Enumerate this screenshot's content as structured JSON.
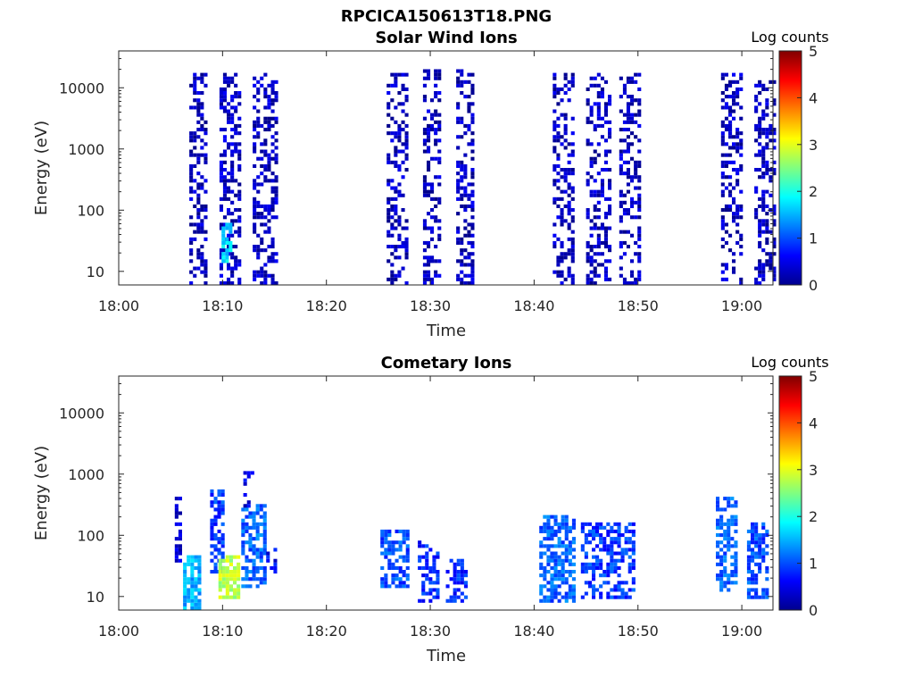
{
  "figure_title": "RPCICA150613T18.PNG",
  "colorbar": {
    "title": "Log counts",
    "ticks": [
      0,
      1,
      2,
      3,
      4,
      5
    ],
    "range": [
      0,
      5
    ],
    "colormap": "jet"
  },
  "chart_data": [
    {
      "type": "heatmap",
      "title": "Solar Wind Ions",
      "xlabel": "Time",
      "ylabel": "Energy (eV)",
      "x_range": [
        "18:00",
        "19:03"
      ],
      "x_ticks": [
        "18:00",
        "18:10",
        "18:20",
        "18:30",
        "18:40",
        "18:50",
        "19:00"
      ],
      "y_scale": "log",
      "y_range": [
        6,
        40000
      ],
      "y_ticks": [
        10,
        100,
        1000,
        10000
      ],
      "y_tick_labels": [
        "10",
        "100",
        "1000",
        "10000"
      ],
      "colorbar_title": "Log counts",
      "colorbar_range": [
        0,
        5
      ],
      "bursts": [
        {
          "start_min": 6.8,
          "end_min": 8.4,
          "emin": 6,
          "emax": 16000,
          "level": 0.3,
          "density": 0.45
        },
        {
          "start_min": 9.7,
          "end_min": 11.6,
          "emin": 6,
          "emax": 16000,
          "level": 0.35,
          "density": 0.45
        },
        {
          "start_min": 9.9,
          "end_min": 10.8,
          "emin": 15,
          "emax": 60,
          "level": 1.7,
          "density": 0.8
        },
        {
          "start_min": 12.9,
          "end_min": 15.0,
          "emin": 6,
          "emax": 16000,
          "level": 0.3,
          "density": 0.45
        },
        {
          "start_min": 25.8,
          "end_min": 27.8,
          "emin": 6,
          "emax": 16000,
          "level": 0.3,
          "density": 0.4
        },
        {
          "start_min": 29.3,
          "end_min": 31.0,
          "emin": 6,
          "emax": 18000,
          "level": 0.3,
          "density": 0.4
        },
        {
          "start_min": 32.5,
          "end_min": 34.2,
          "emin": 6,
          "emax": 18000,
          "level": 0.3,
          "density": 0.4
        },
        {
          "start_min": 41.8,
          "end_min": 43.8,
          "emin": 6,
          "emax": 16000,
          "level": 0.3,
          "density": 0.4
        },
        {
          "start_min": 45.0,
          "end_min": 47.2,
          "emin": 6,
          "emax": 16000,
          "level": 0.3,
          "density": 0.4
        },
        {
          "start_min": 48.2,
          "end_min": 50.0,
          "emin": 6,
          "emax": 16000,
          "level": 0.3,
          "density": 0.4
        },
        {
          "start_min": 58.0,
          "end_min": 60.0,
          "emin": 6,
          "emax": 16000,
          "level": 0.3,
          "density": 0.4
        },
        {
          "start_min": 61.2,
          "end_min": 63.3,
          "emin": 6,
          "emax": 12000,
          "level": 0.3,
          "density": 0.4
        }
      ]
    },
    {
      "type": "heatmap",
      "title": "Cometary Ions",
      "xlabel": "Time",
      "ylabel": "Energy (eV)",
      "x_range": [
        "18:00",
        "19:03"
      ],
      "x_ticks": [
        "18:00",
        "18:10",
        "18:20",
        "18:30",
        "18:40",
        "18:50",
        "19:00"
      ],
      "y_scale": "log",
      "y_range": [
        6,
        40000
      ],
      "y_ticks": [
        10,
        100,
        1000,
        10000
      ],
      "y_tick_labels": [
        "10",
        "100",
        "1000",
        "10000"
      ],
      "colorbar_title": "Log counts",
      "colorbar_range": [
        0,
        5
      ],
      "bursts": [
        {
          "start_min": 5.4,
          "end_min": 6.0,
          "emin": 40,
          "emax": 400,
          "level": 0.4,
          "density": 0.5
        },
        {
          "start_min": 6.2,
          "end_min": 7.8,
          "emin": 6,
          "emax": 45,
          "level": 1.5,
          "density": 0.75
        },
        {
          "start_min": 8.8,
          "end_min": 10.2,
          "emin": 25,
          "emax": 500,
          "level": 0.9,
          "density": 0.6
        },
        {
          "start_min": 9.6,
          "end_min": 11.6,
          "emin": 10,
          "emax": 45,
          "level": 2.8,
          "density": 0.8
        },
        {
          "start_min": 11.8,
          "end_min": 14.2,
          "emin": 15,
          "emax": 300,
          "level": 1.1,
          "density": 0.6
        },
        {
          "start_min": 12.0,
          "end_min": 13.0,
          "emin": 300,
          "emax": 1100,
          "level": 0.5,
          "density": 0.4
        },
        {
          "start_min": 14.2,
          "end_min": 15.2,
          "emin": 25,
          "emax": 60,
          "level": 0.6,
          "density": 0.5
        },
        {
          "start_min": 25.2,
          "end_min": 27.8,
          "emin": 15,
          "emax": 120,
          "level": 1.0,
          "density": 0.6
        },
        {
          "start_min": 28.8,
          "end_min": 30.8,
          "emin": 8,
          "emax": 80,
          "level": 0.8,
          "density": 0.55
        },
        {
          "start_min": 31.5,
          "end_min": 33.5,
          "emin": 8,
          "emax": 40,
          "level": 0.8,
          "density": 0.5
        },
        {
          "start_min": 40.5,
          "end_min": 44.0,
          "emin": 8,
          "emax": 200,
          "level": 1.1,
          "density": 0.6
        },
        {
          "start_min": 44.5,
          "end_min": 49.5,
          "emin": 10,
          "emax": 150,
          "level": 0.9,
          "density": 0.55
        },
        {
          "start_min": 57.5,
          "end_min": 59.5,
          "emin": 12,
          "emax": 400,
          "level": 1.1,
          "density": 0.6
        },
        {
          "start_min": 60.5,
          "end_min": 62.5,
          "emin": 10,
          "emax": 150,
          "level": 1.0,
          "density": 0.55
        }
      ]
    }
  ]
}
